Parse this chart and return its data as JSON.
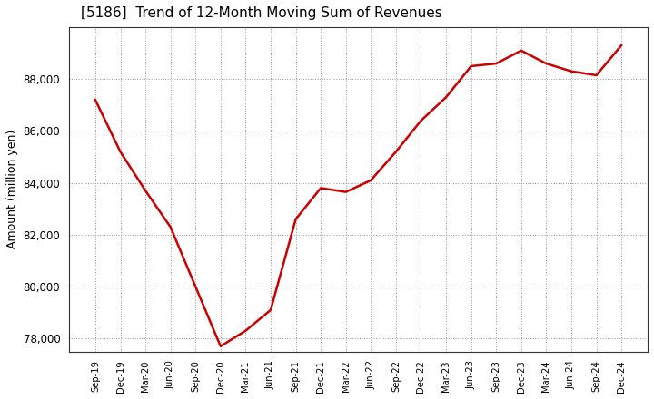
{
  "title": "[5186]  Trend of 12-Month Moving Sum of Revenues",
  "ylabel": "Amount (million yen)",
  "line_color": "#cc0000",
  "line_width": 1.8,
  "background_color": "#ffffff",
  "grid_color": "#999999",
  "ylim": [
    77500,
    90000
  ],
  "yticks": [
    78000,
    80000,
    82000,
    84000,
    86000,
    88000
  ],
  "x_labels": [
    "Sep-19",
    "Dec-19",
    "Mar-20",
    "Jun-20",
    "Sep-20",
    "Dec-20",
    "Mar-21",
    "Jun-21",
    "Sep-21",
    "Dec-21",
    "Mar-22",
    "Jun-22",
    "Sep-22",
    "Dec-22",
    "Mar-23",
    "Jun-23",
    "Sep-23",
    "Dec-23",
    "Mar-24",
    "Jun-24",
    "Sep-24",
    "Dec-24"
  ],
  "values": [
    87200,
    85200,
    83700,
    82300,
    80000,
    77700,
    78300,
    79100,
    82600,
    83800,
    83650,
    84100,
    85200,
    86400,
    87300,
    88500,
    88600,
    89100,
    88600,
    88300,
    88150,
    89300
  ]
}
